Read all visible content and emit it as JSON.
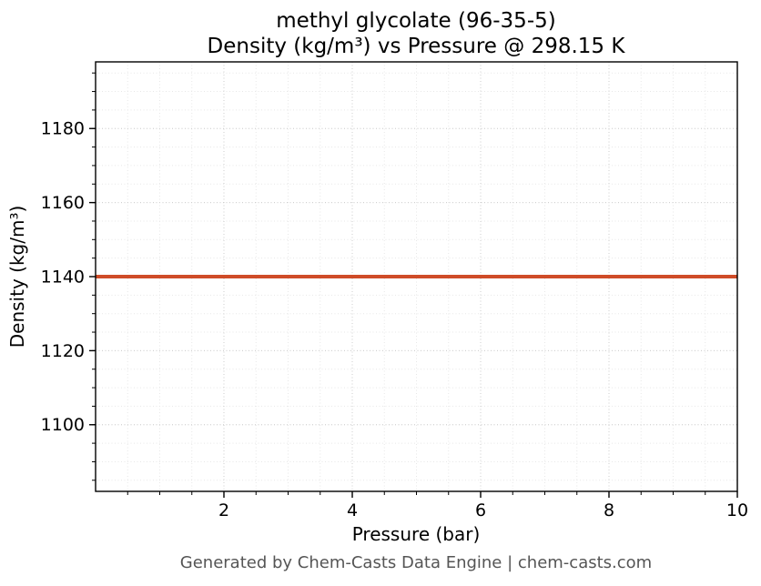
{
  "chart_data": {
    "type": "line",
    "title": "methyl glycolate (96-35-5)",
    "subtitle": "Density (kg/m³) vs Pressure @ 298.15 K",
    "xlabel": "Pressure (bar)",
    "ylabel": "Density (kg/m³)",
    "xlim": [
      0,
      10
    ],
    "ylim": [
      1082,
      1198
    ],
    "xticks": [
      2,
      4,
      6,
      8,
      10
    ],
    "yticks": [
      1100,
      1120,
      1140,
      1160,
      1180
    ],
    "x_minor_step": 0.5,
    "y_minor_step": 5,
    "grid": true,
    "legend": "none",
    "series": [
      {
        "name": "density",
        "x": [
          0,
          10
        ],
        "values": [
          1140,
          1140
        ],
        "color": "#cf4c28",
        "line_width": 4
      }
    ]
  },
  "footer": {
    "text": "Generated by Chem-Casts Data Engine | chem-casts.com"
  }
}
